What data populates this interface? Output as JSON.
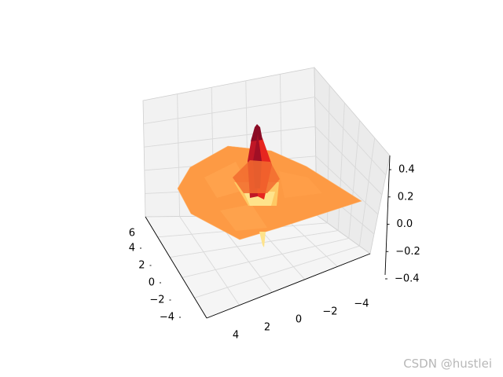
{
  "chart_data": {
    "type": "surface3d",
    "surface": "triangulated radial ripple, z = sin(r)/r scaled",
    "x_ticks": [
      "−4",
      "−2",
      "0",
      "2",
      "4",
      "6"
    ],
    "y_ticks": [
      "4",
      "2",
      "0",
      "−2",
      "−4"
    ],
    "z_ticks": [
      "−0.4",
      "−0.2",
      "0.0",
      "0.2",
      "0.4"
    ],
    "x_range": [
      -5,
      6
    ],
    "y_range": [
      -5,
      5
    ],
    "z_range": [
      -0.4,
      0.4
    ],
    "peak_z": 0.4,
    "flat_level_z": 0.0,
    "trough_z": -0.3,
    "colormap": "YlOrRd",
    "grid": true,
    "colors": {
      "pane_back": "#f2f2f2",
      "pane_side": "#ebebeb",
      "pane_floor": "#f5f5f5",
      "grid": "#d9d9d9",
      "flat_surface": "#fd9a44",
      "peak": "#8b0b24",
      "mid_red": "#e7261f",
      "ring_yellow": "#fee38b"
    }
  },
  "watermark": "CSDN @hustlei"
}
